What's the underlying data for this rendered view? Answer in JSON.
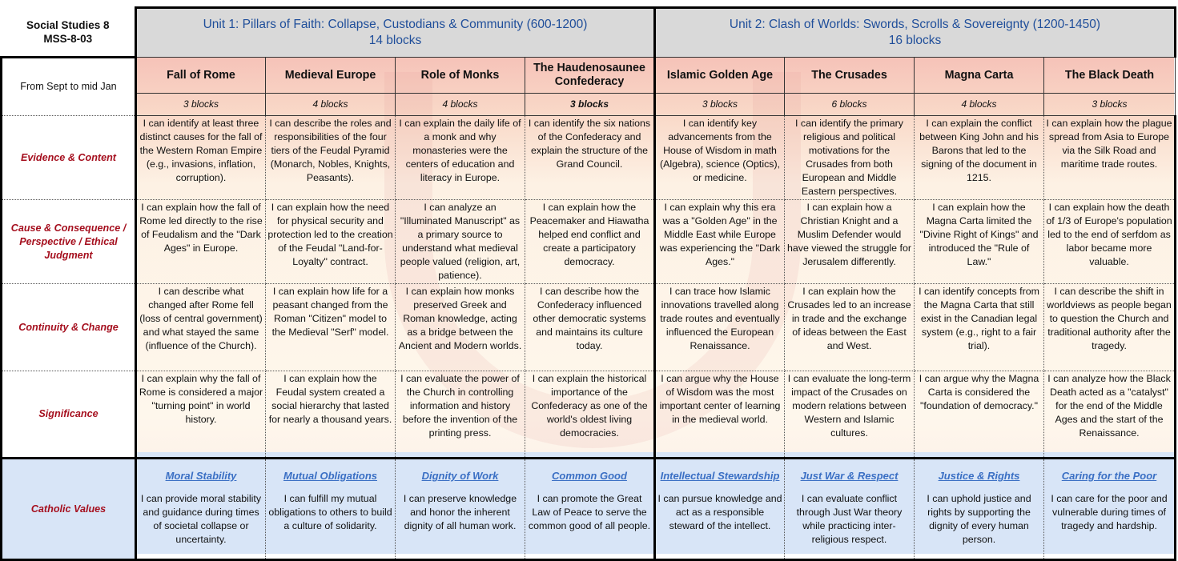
{
  "title": {
    "line1": "Social Studies 8",
    "line2": "MSS-8-03"
  },
  "timeframe": "From Sept to mid Jan",
  "units": [
    {
      "title": "Unit 1: Pillars of Faith: Collapse, Custodians & Community (600-1200)",
      "blocks": "14 blocks"
    },
    {
      "title": "Unit 2: Clash of Worlds: Swords, Scrolls & Sovereignty (1200-1450)",
      "blocks": "16 blocks"
    }
  ],
  "topics": [
    {
      "name": "Fall of Rome",
      "blocks": "3 blocks"
    },
    {
      "name": "Medieval Europe",
      "blocks": "4 blocks"
    },
    {
      "name": "Role of Monks",
      "blocks": "4 blocks"
    },
    {
      "name": "The Haudenosaunee Confederacy",
      "blocks": "3 blocks"
    },
    {
      "name": "Islamic Golden Age",
      "blocks": "3 blocks"
    },
    {
      "name": "The Crusades",
      "blocks": "6 blocks"
    },
    {
      "name": "Magna Carta",
      "blocks": "4 blocks"
    },
    {
      "name": "The Black Death",
      "blocks": "3 blocks"
    }
  ],
  "rows": [
    {
      "label": "Evidence & Content",
      "cells": [
        "I can identify at least three distinct causes for the fall of the Western Roman Empire (e.g., invasions, inflation, corruption).",
        "I can describe the roles and responsibilities of the four tiers of the Feudal Pyramid (Monarch, Nobles, Knights, Peasants).",
        "I can explain the daily life of a monk and why monasteries were the centers of education and literacy in Europe.",
        "I can identify the six nations of the Confederacy and explain the structure of the Grand Council.",
        "I can identify key advancements from the House of Wisdom in math (Algebra), science (Optics), or medicine.",
        "I can identify the primary religious and political motivations for the Crusades from both European and Middle Eastern perspectives.",
        "I can explain the conflict between King John and his Barons that led to the signing of the document in 1215.",
        "I can explain how the plague spread from Asia to Europe via the Silk Road and maritime trade routes."
      ]
    },
    {
      "label": "Cause & Consequence / Perspective / Ethical Judgment",
      "cells": [
        "I can explain how the fall of Rome led directly to the rise of Feudalism and the \"Dark Ages\" in Europe.",
        "I can explain how the need for physical security and protection led to the creation of the Feudal \"Land-for-Loyalty\" contract.",
        "I can analyze an \"Illuminated Manuscript\" as a primary source to understand what medieval people valued (religion, art, patience).",
        "I can explain how the Peacemaker and Hiawatha helped end conflict and create a participatory democracy.",
        "I can explain why this era was a \"Golden Age\" in the Middle East while Europe was experiencing the \"Dark Ages.\"",
        "I can explain how a Christian Knight and a Muslim Defender would have viewed the struggle for Jerusalem differently.",
        "I can explain how the Magna Carta limited the \"Divine Right of Kings\" and introduced the \"Rule of Law.\"",
        "I can explain how the death of 1/3 of Europe's population led to the end of serfdom as labor became more valuable."
      ]
    },
    {
      "label": "Continuity & Change",
      "cells": [
        "I can describe what changed after Rome fell (loss of central government) and what stayed the same (influence of the Church).",
        "I can explain how life for a peasant changed from the Roman \"Citizen\" model to the Medieval \"Serf\" model.",
        "I can explain how monks preserved Greek and Roman knowledge, acting as a bridge between the Ancient and Modern worlds.",
        "I can describe how the Confederacy influenced other democratic systems and maintains its culture today.",
        "I can trace how Islamic innovations travelled along trade routes and eventually influenced the European Renaissance.",
        "I can explain how the Crusades led to an increase in trade and the exchange of ideas between the East and West.",
        "I can identify concepts from the Magna Carta that still exist in the Canadian legal system (e.g., right to a fair trial).",
        "I can describe the shift in worldviews as people began to question the Church and traditional authority after the tragedy."
      ]
    },
    {
      "label": "Significance",
      "cells": [
        "I can explain why the fall of Rome is considered a major \"turning point\" in world history.",
        "I can explain how the Feudal system created a social hierarchy that lasted for nearly a thousand years.",
        "I can evaluate the power of the Church in controlling information and history before the invention of the printing press.",
        "I can explain the historical importance of the Confederacy as one of the world's oldest living democracies.",
        "I can argue why the House of Wisdom was the most important center of learning in the medieval world.",
        "I can evaluate the long-term impact of the Crusades on modern relations between Western and Islamic cultures.",
        "I can argue why the Magna Carta is considered the \"foundation of democracy.\"",
        "I can analyze how the Black Death acted as a \"catalyst\" for the end of the Middle Ages and the start of the Renaissance."
      ]
    }
  ],
  "catholic": {
    "label": "Catholic Values",
    "cells": [
      {
        "value": "Moral Stability",
        "text": "I can provide moral stability and guidance during times of societal collapse or uncertainty."
      },
      {
        "value": "Mutual Obligations",
        "text": "I can fulfill my mutual obligations to others to build a culture of solidarity."
      },
      {
        "value": "Dignity of Work",
        "text": "I can preserve knowledge and honor the inherent dignity of all human work."
      },
      {
        "value": "Common Good",
        "text": "I can promote the Great Law of Peace to serve the common good of all people."
      },
      {
        "value": "Intellectual Stewardship",
        "text": "I can pursue knowledge and act as a responsible steward of the intellect."
      },
      {
        "value": "Just War & Respect",
        "text": "I can evaluate conflict through Just War theory while practicing inter-religious respect."
      },
      {
        "value": "Justice & Rights",
        "text": "I can uphold justice and rights by supporting the dignity of every human person."
      },
      {
        "value": "Caring for the Poor",
        "text": "I can care for the poor and vulnerable during times of tragedy and hardship."
      }
    ]
  }
}
